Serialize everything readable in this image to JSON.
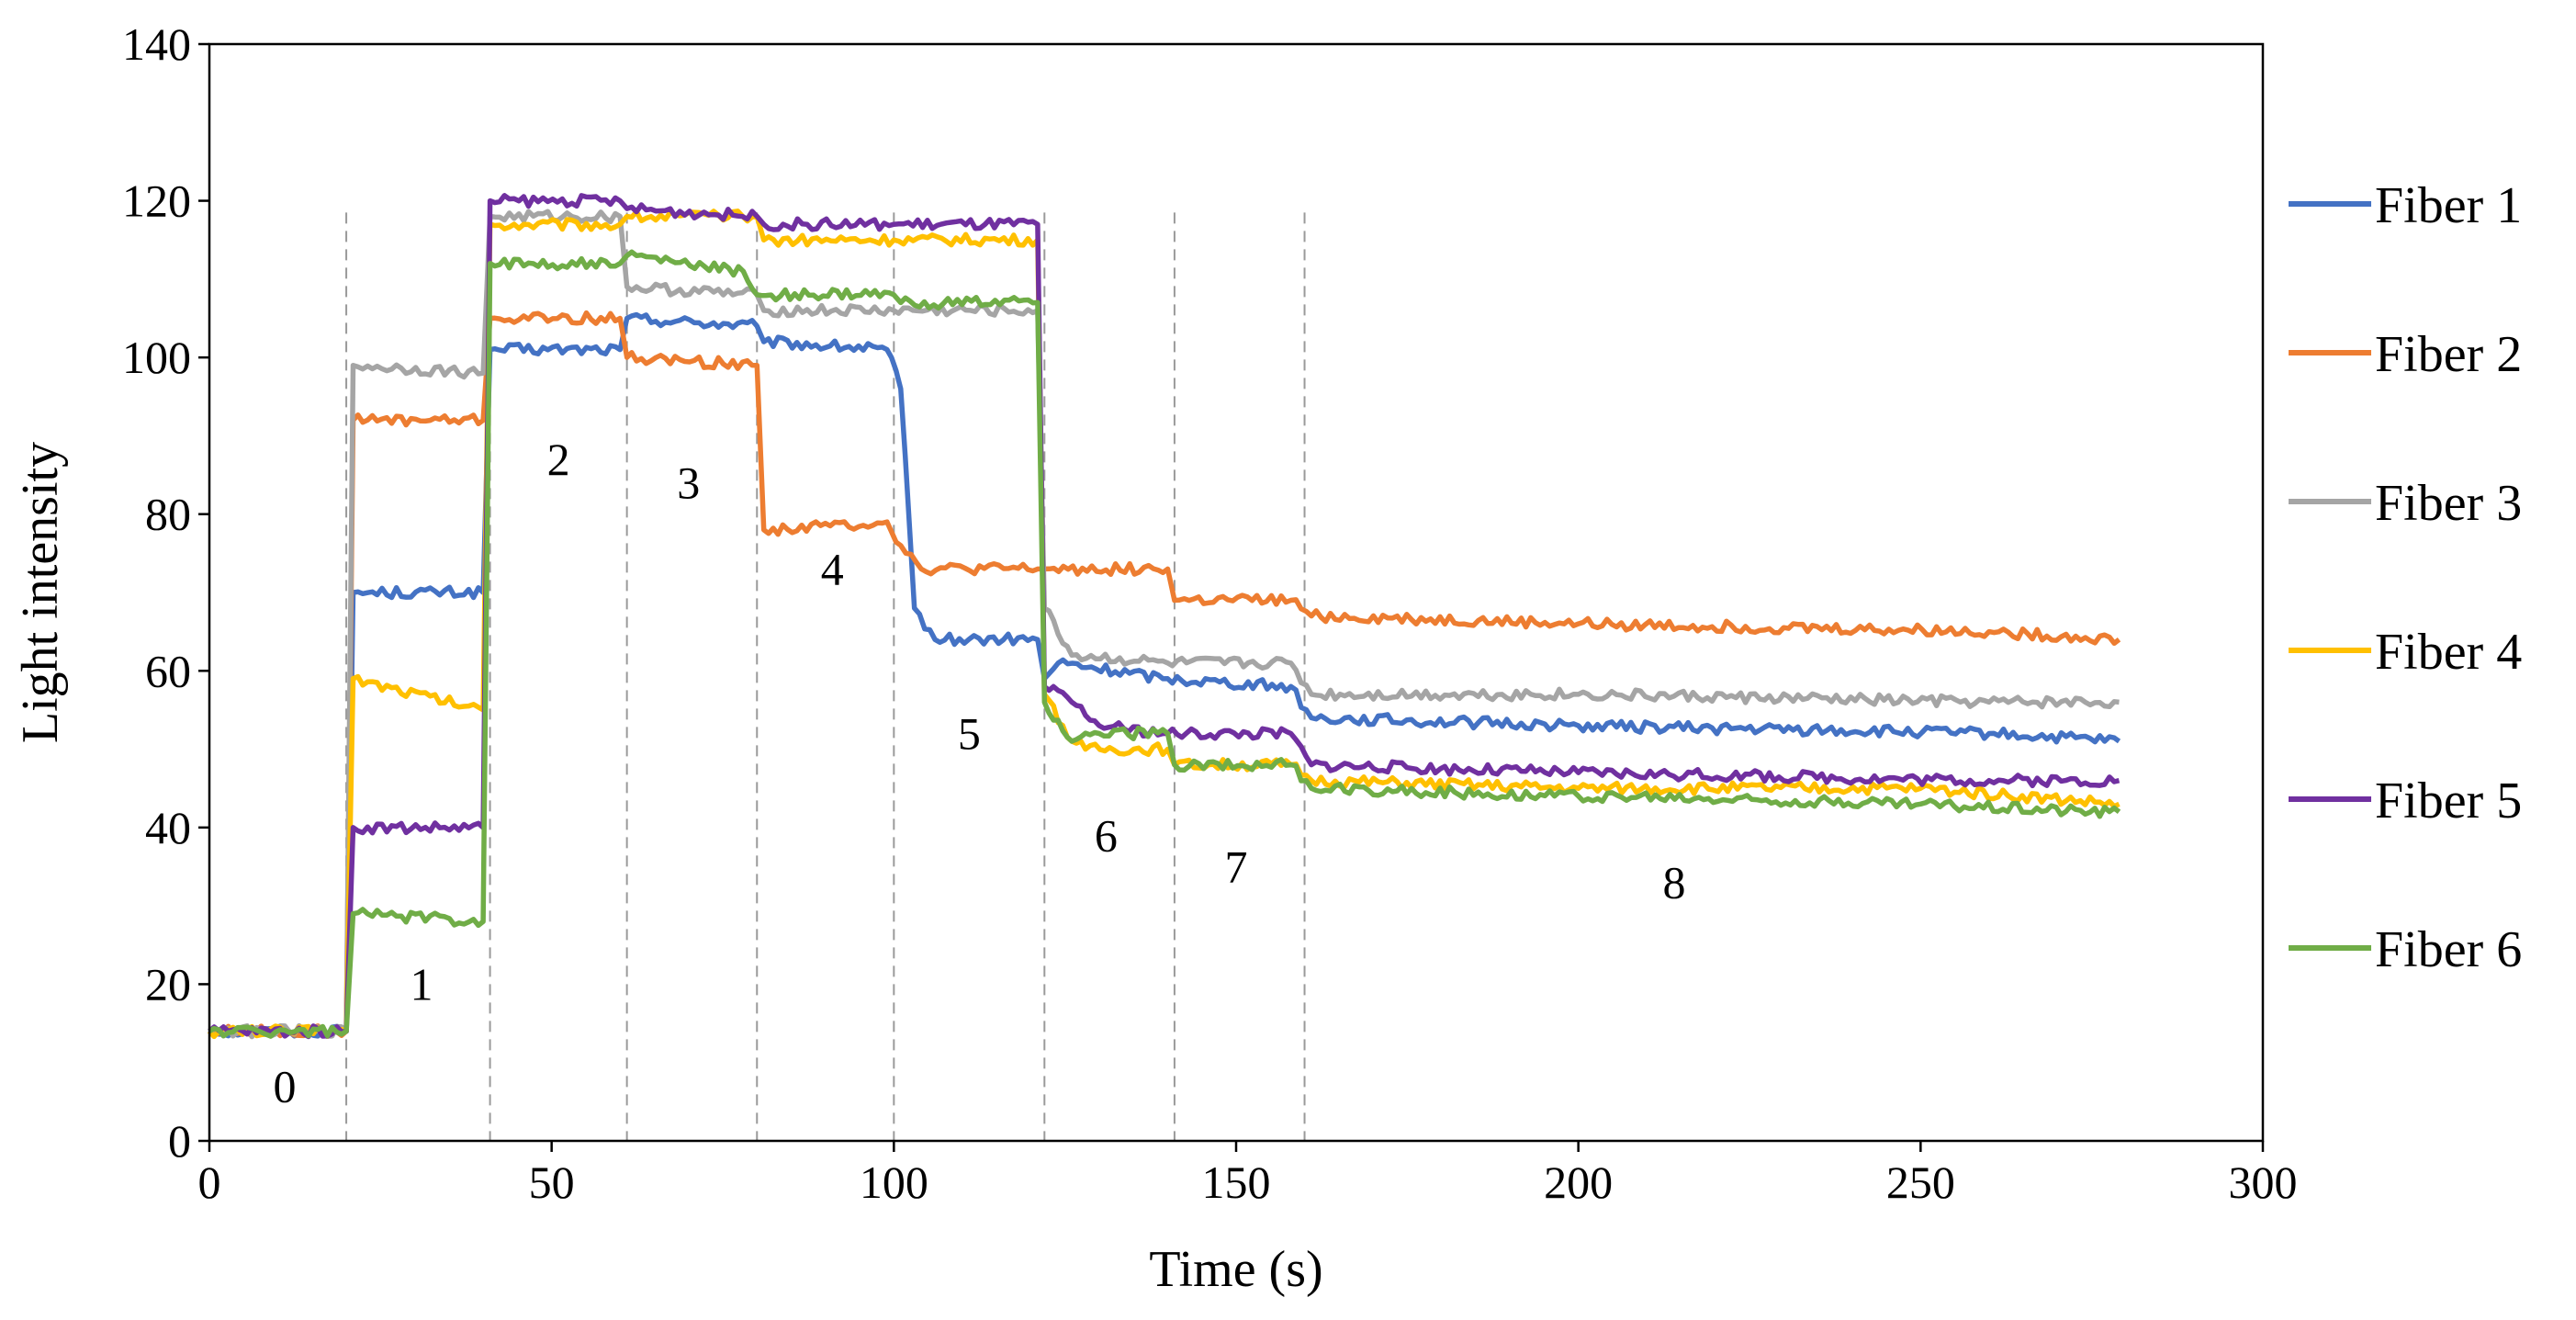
{
  "chart_data": {
    "type": "line",
    "title": "",
    "xlabel": "Time (s)",
    "ylabel": "Light intensity",
    "xlim": [
      0,
      300
    ],
    "ylim": [
      0,
      140
    ],
    "xticks": [
      0,
      50,
      100,
      150,
      200,
      250,
      300
    ],
    "yticks": [
      0,
      20,
      40,
      60,
      80,
      100,
      120,
      140
    ],
    "grid": false,
    "legend_position": "right",
    "phase_boundaries": [
      20,
      41,
      61,
      80,
      100,
      122,
      141,
      160
    ],
    "phase_labels": [
      {
        "text": "0",
        "x": 11,
        "y": 7
      },
      {
        "text": "1",
        "x": 31,
        "y": 20
      },
      {
        "text": "2",
        "x": 51,
        "y": 87
      },
      {
        "text": "3",
        "x": 70,
        "y": 84
      },
      {
        "text": "4",
        "x": 91,
        "y": 73
      },
      {
        "text": "5",
        "x": 111,
        "y": 52
      },
      {
        "text": "6",
        "x": 131,
        "y": 39
      },
      {
        "text": "7",
        "x": 150,
        "y": 35
      },
      {
        "text": "8",
        "x": 214,
        "y": 33
      }
    ],
    "series": [
      {
        "name": "Fiber 1",
        "color": "#4472C4",
        "points": [
          [
            0,
            14
          ],
          [
            20,
            14
          ],
          [
            21,
            70
          ],
          [
            40,
            70
          ],
          [
            41,
            101
          ],
          [
            60,
            101
          ],
          [
            61,
            105
          ],
          [
            80,
            104
          ],
          [
            81,
            102
          ],
          [
            99,
            101
          ],
          [
            101,
            96
          ],
          [
            103,
            68
          ],
          [
            106,
            64
          ],
          [
            121,
            64
          ],
          [
            122,
            59
          ],
          [
            124,
            61
          ],
          [
            140,
            59
          ],
          [
            158,
            58
          ],
          [
            161,
            54
          ],
          [
            200,
            53
          ],
          [
            260,
            52
          ],
          [
            279,
            51
          ]
        ]
      },
      {
        "name": "Fiber 2",
        "color": "#ED7D31",
        "points": [
          [
            0,
            14
          ],
          [
            20,
            14
          ],
          [
            21,
            92
          ],
          [
            40,
            92
          ],
          [
            41,
            105
          ],
          [
            60,
            105
          ],
          [
            61,
            100
          ],
          [
            80,
            99
          ],
          [
            81,
            78
          ],
          [
            99,
            79
          ],
          [
            101,
            76
          ],
          [
            104,
            73
          ],
          [
            121,
            73
          ],
          [
            122,
            73
          ],
          [
            140,
            73
          ],
          [
            141,
            69
          ],
          [
            158,
            69
          ],
          [
            161,
            67
          ],
          [
            200,
            66
          ],
          [
            260,
            65
          ],
          [
            279,
            64
          ]
        ]
      },
      {
        "name": "Fiber 3",
        "color": "#A5A5A5",
        "points": [
          [
            0,
            14
          ],
          [
            20,
            14
          ],
          [
            21,
            99
          ],
          [
            40,
            98
          ],
          [
            41,
            118
          ],
          [
            60,
            118
          ],
          [
            61,
            109
          ],
          [
            80,
            108
          ],
          [
            81,
            106
          ],
          [
            100,
            106
          ],
          [
            121,
            106
          ],
          [
            122,
            68
          ],
          [
            126,
            62
          ],
          [
            140,
            61
          ],
          [
            158,
            61
          ],
          [
            161,
            57
          ],
          [
            200,
            57
          ],
          [
            260,
            56
          ],
          [
            279,
            56
          ]
        ]
      },
      {
        "name": "Fiber 4",
        "color": "#FFC000",
        "points": [
          [
            0,
            14
          ],
          [
            20,
            14
          ],
          [
            21,
            59
          ],
          [
            40,
            55
          ],
          [
            41,
            117
          ],
          [
            60,
            117
          ],
          [
            61,
            118
          ],
          [
            80,
            118
          ],
          [
            81,
            115
          ],
          [
            100,
            115
          ],
          [
            121,
            115
          ],
          [
            122,
            57
          ],
          [
            126,
            51
          ],
          [
            128,
            50
          ],
          [
            140,
            50
          ],
          [
            141,
            48
          ],
          [
            158,
            48
          ],
          [
            161,
            46
          ],
          [
            200,
            45
          ],
          [
            250,
            45
          ],
          [
            279,
            43
          ]
        ]
      },
      {
        "name": "Fiber 5",
        "color": "#7030A0",
        "points": [
          [
            0,
            14
          ],
          [
            20,
            14
          ],
          [
            21,
            40
          ],
          [
            40,
            40
          ],
          [
            41,
            120
          ],
          [
            60,
            120
          ],
          [
            61,
            119
          ],
          [
            80,
            118
          ],
          [
            81,
            117
          ],
          [
            100,
            117
          ],
          [
            121,
            117
          ],
          [
            122,
            58
          ],
          [
            126,
            56
          ],
          [
            130,
            53
          ],
          [
            140,
            52
          ],
          [
            158,
            52
          ],
          [
            161,
            48
          ],
          [
            200,
            47
          ],
          [
            260,
            46
          ],
          [
            279,
            46
          ]
        ]
      },
      {
        "name": "Fiber 6",
        "color": "#70AD47",
        "points": [
          [
            0,
            14
          ],
          [
            20,
            14
          ],
          [
            21,
            29
          ],
          [
            40,
            28
          ],
          [
            41,
            112
          ],
          [
            60,
            112
          ],
          [
            61,
            113
          ],
          [
            78,
            111
          ],
          [
            80,
            108
          ],
          [
            100,
            108
          ],
          [
            101,
            107
          ],
          [
            121,
            107
          ],
          [
            122,
            56
          ],
          [
            126,
            51
          ],
          [
            130,
            52
          ],
          [
            140,
            52
          ],
          [
            141,
            48
          ],
          [
            158,
            48
          ],
          [
            161,
            45
          ],
          [
            200,
            44
          ],
          [
            250,
            43
          ],
          [
            279,
            42
          ]
        ]
      }
    ]
  }
}
